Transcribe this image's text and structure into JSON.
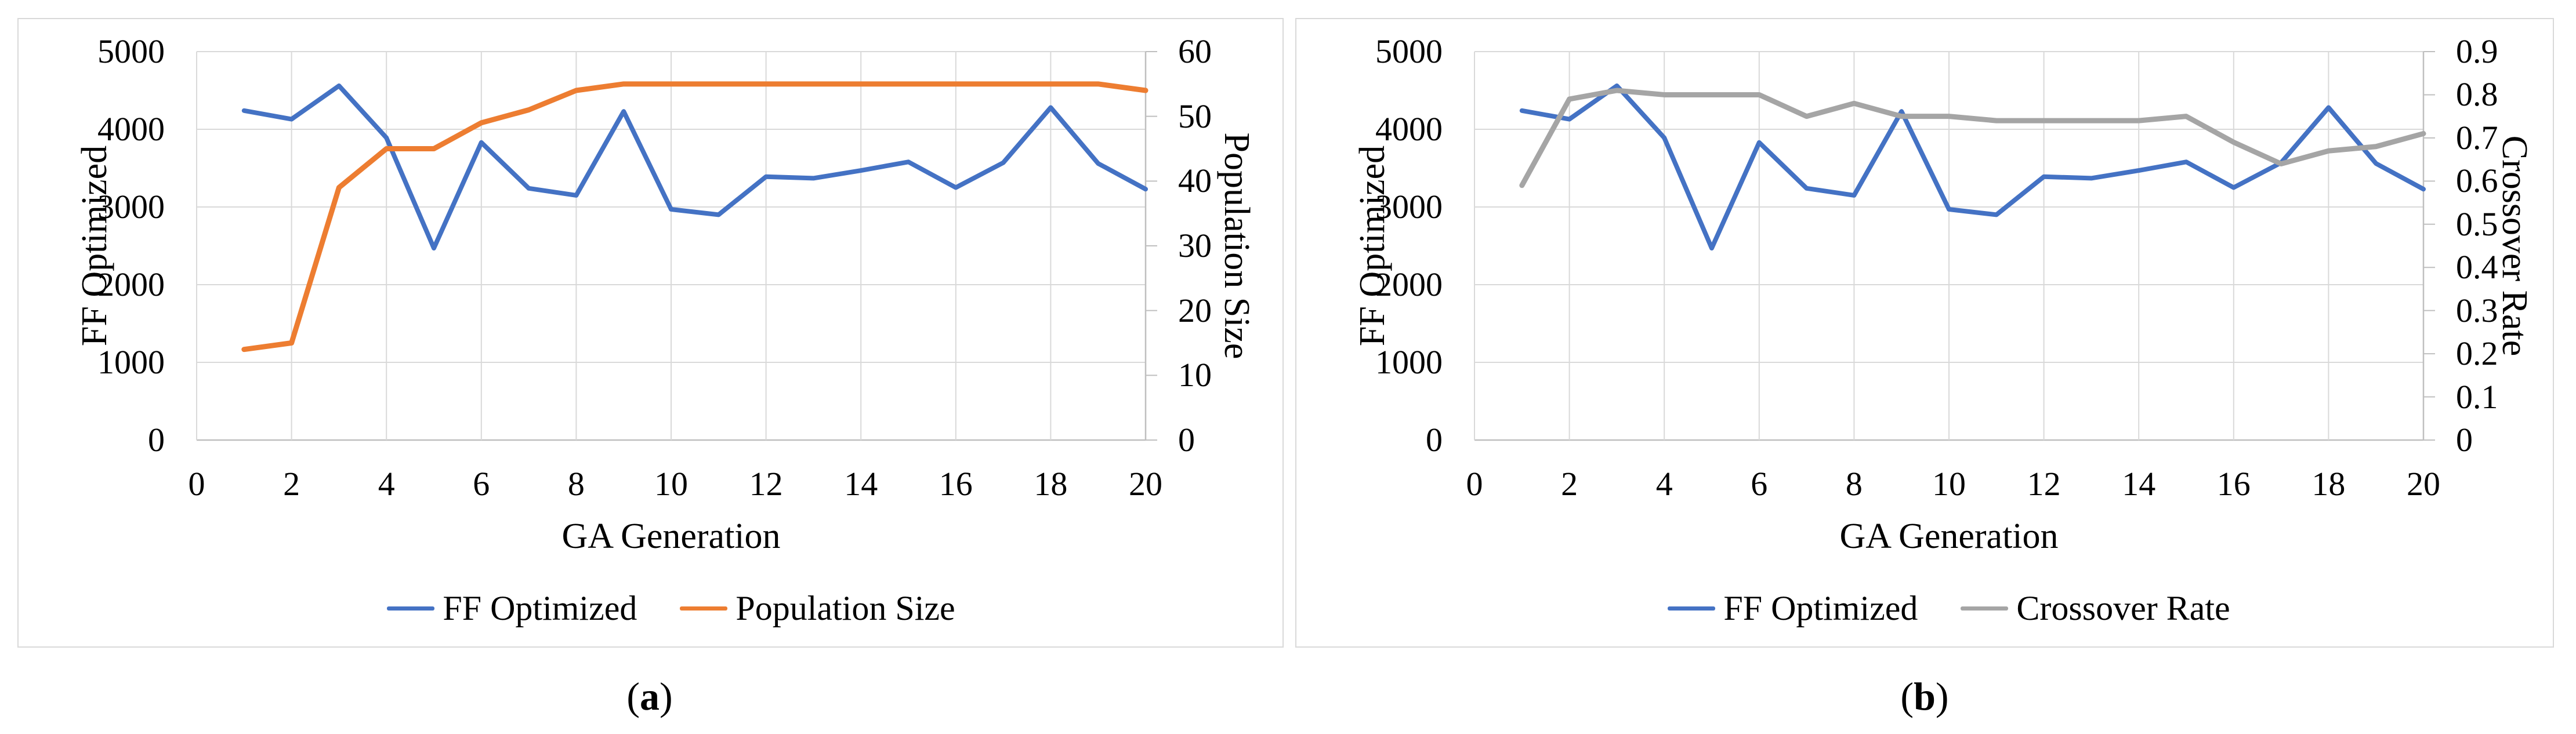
{
  "colors": {
    "ff_optimized": "#4472C4",
    "population_size": "#ED7D31",
    "crossover_rate": "#A5A5A5",
    "gridline": "#D9D9D9",
    "axis_line": "#BFBFBF",
    "text": "#000000",
    "card_border": "#D9D9D9"
  },
  "chart_data": [
    {
      "id": "a",
      "type": "line",
      "caption": {
        "open": "(",
        "letter": "a",
        "close": ")"
      },
      "xlabel": "GA Generation",
      "x": [
        1,
        2,
        3,
        4,
        5,
        6,
        7,
        8,
        9,
        10,
        11,
        12,
        13,
        14,
        15,
        16,
        17,
        18,
        19,
        20
      ],
      "x_ticks": [
        0,
        2,
        4,
        6,
        8,
        10,
        12,
        14,
        16,
        18,
        20
      ],
      "xlim": [
        0,
        20
      ],
      "grid": true,
      "legend_position": "bottom",
      "left_axis": {
        "label": "FF Optimized",
        "ticks": [
          0,
          1000,
          2000,
          3000,
          4000,
          5000
        ],
        "lim": [
          0,
          5000
        ]
      },
      "right_axis": {
        "label": "Population Size",
        "ticks": [
          0,
          10,
          20,
          30,
          40,
          50,
          60
        ],
        "lim": [
          0,
          60
        ]
      },
      "series": [
        {
          "name": "FF Optimized",
          "axis": "left",
          "color_key": "ff_optimized",
          "width": 8,
          "values": [
            4240,
            4130,
            4560,
            3890,
            2470,
            3830,
            3240,
            3150,
            4230,
            2970,
            2900,
            3390,
            3370,
            3470,
            3580,
            3250,
            3570,
            4280,
            3560,
            3230
          ]
        },
        {
          "name": "Population Size",
          "axis": "right",
          "color_key": "population_size",
          "width": 9,
          "values": [
            14,
            15,
            39,
            45,
            45,
            49,
            51,
            54,
            55,
            55,
            55,
            55,
            55,
            55,
            55,
            55,
            55,
            55,
            55,
            54
          ]
        }
      ]
    },
    {
      "id": "b",
      "type": "line",
      "caption": {
        "open": "(",
        "letter": "b",
        "close": ")"
      },
      "xlabel": "GA Generation",
      "x": [
        1,
        2,
        3,
        4,
        5,
        6,
        7,
        8,
        9,
        10,
        11,
        12,
        13,
        14,
        15,
        16,
        17,
        18,
        19,
        20
      ],
      "x_ticks": [
        0,
        2,
        4,
        6,
        8,
        10,
        12,
        14,
        16,
        18,
        20
      ],
      "xlim": [
        0,
        20
      ],
      "grid": true,
      "legend_position": "bottom",
      "left_axis": {
        "label": "FF Optimized",
        "ticks": [
          0,
          1000,
          2000,
          3000,
          4000,
          5000
        ],
        "lim": [
          0,
          5000
        ]
      },
      "right_axis": {
        "label": "Crossover Rate",
        "ticks": [
          0,
          0.1,
          0.2,
          0.3,
          0.4,
          0.5,
          0.6,
          0.7,
          0.8,
          0.9
        ],
        "lim": [
          0,
          0.9
        ]
      },
      "series": [
        {
          "name": "FF Optimized",
          "axis": "left",
          "color_key": "ff_optimized",
          "width": 8,
          "values": [
            4240,
            4130,
            4560,
            3890,
            2470,
            3830,
            3240,
            3150,
            4230,
            2970,
            2900,
            3390,
            3370,
            3470,
            3580,
            3250,
            3570,
            4280,
            3560,
            3230
          ]
        },
        {
          "name": "Crossover Rate",
          "axis": "right",
          "color_key": "crossover_rate",
          "width": 9,
          "values": [
            0.59,
            0.79,
            0.81,
            0.8,
            0.8,
            0.8,
            0.75,
            0.78,
            0.75,
            0.75,
            0.74,
            0.74,
            0.74,
            0.74,
            0.75,
            0.69,
            0.64,
            0.67,
            0.68,
            0.71
          ]
        }
      ]
    }
  ]
}
